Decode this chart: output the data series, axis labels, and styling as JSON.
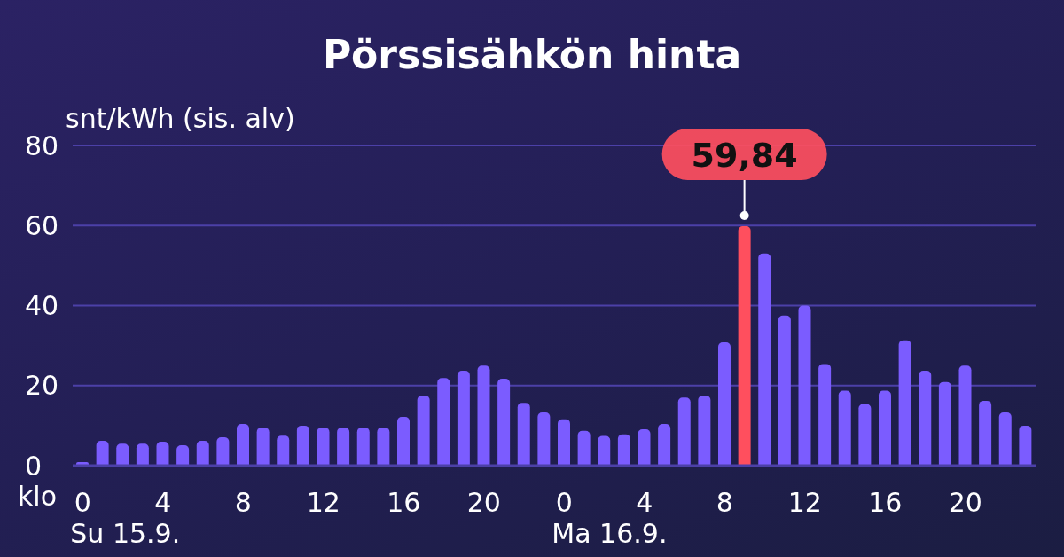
{
  "chart_data": {
    "type": "bar",
    "title": "Pörssisähkön hinta",
    "ylabel": "snt/kWh (sis. alv)",
    "xlabel": "klo",
    "categories": [
      "0",
      null,
      null,
      null,
      "4",
      null,
      null,
      null,
      "8",
      null,
      null,
      null,
      "12",
      null,
      null,
      null,
      "16",
      null,
      null,
      null,
      "20",
      null,
      null,
      null,
      "0",
      null,
      null,
      null,
      "4",
      null,
      null,
      null,
      "8",
      null,
      null,
      null,
      "12",
      null,
      null,
      null,
      "16",
      null,
      null,
      null,
      "20",
      null,
      null,
      null
    ],
    "values": [
      0.9,
      6.2,
      5.5,
      5.5,
      6,
      5.1,
      6.2,
      7.1,
      10.4,
      9.5,
      7.5,
      10,
      9.5,
      9.5,
      9.5,
      9.5,
      12.2,
      17.5,
      21.9,
      23.7,
      25,
      21.7,
      15.7,
      13.3,
      11.6,
      8.7,
      7.4,
      7.8,
      9.1,
      10.4,
      17,
      17.5,
      30.8,
      59.84,
      53,
      37.5,
      40,
      25.4,
      18.7,
      15.4,
      18.7,
      31.3,
      23.7,
      20.9,
      25,
      16.2,
      13.3,
      10
    ],
    "colors": [
      "#7b5cff",
      "#7b5cff",
      "#7b5cff",
      "#7b5cff",
      "#7b5cff",
      "#7b5cff",
      "#7b5cff",
      "#7b5cff",
      "#7b5cff",
      "#7b5cff",
      "#7b5cff",
      "#7b5cff",
      "#7b5cff",
      "#7b5cff",
      "#7b5cff",
      "#7b5cff",
      "#7b5cff",
      "#7b5cff",
      "#7b5cff",
      "#7b5cff",
      "#7b5cff",
      "#7b5cff",
      "#7b5cff",
      "#7b5cff",
      "#7b5cff",
      "#7b5cff",
      "#7b5cff",
      "#7b5cff",
      "#7b5cff",
      "#7b5cff",
      "#7b5cff",
      "#7b5cff",
      "#7b5cff",
      "#ff4f5e",
      "#7b5cff",
      "#7b5cff",
      "#7b5cff",
      "#7b5cff",
      "#7b5cff",
      "#7b5cff",
      "#7b5cff",
      "#7b5cff",
      "#7b5cff",
      "#7b5cff",
      "#7b5cff",
      "#7b5cff",
      "#7b5cff",
      "#7b5cff"
    ],
    "value_labels": [
      null,
      null,
      null,
      null,
      null,
      null,
      null,
      null,
      null,
      null,
      null,
      null,
      null,
      null,
      null,
      null,
      null,
      null,
      null,
      null,
      null,
      null,
      null,
      null,
      null,
      null,
      null,
      null,
      null,
      null,
      null,
      null,
      null,
      "59,84",
      null,
      null,
      null,
      null,
      null,
      null,
      null,
      null,
      null,
      null,
      null,
      null,
      null,
      null
    ],
    "ylim": [
      0,
      80
    ],
    "yticks": [
      0,
      20,
      40,
      60,
      80
    ],
    "grid": "y",
    "annotations": [
      "Su 15.9.",
      "Ma 16.9."
    ]
  }
}
